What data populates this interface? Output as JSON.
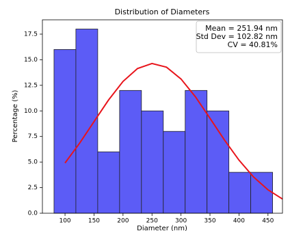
{
  "chart_data": {
    "type": "histogram",
    "title": "Distribution of Diameters",
    "x_label": "Diameter (nm)",
    "y_label": "Percentage (%)",
    "bins": [
      81,
      118.7,
      156.4,
      194.1,
      231.8,
      269.5,
      307.2,
      344.9,
      382.6,
      420.3,
      458
    ],
    "values": [
      16,
      18,
      6,
      12,
      10,
      8,
      12,
      10,
      4,
      4
    ],
    "color": "#5c5cf6",
    "edge_color": "#222222",
    "curve": {
      "color": "#e8141b",
      "x": [
        100,
        125,
        150,
        175,
        200,
        225,
        250,
        275,
        300,
        325,
        350,
        375,
        400,
        425,
        450,
        475
      ],
      "values": [
        4.91,
        6.83,
        8.95,
        11.06,
        12.88,
        14.14,
        14.63,
        14.27,
        13.12,
        11.37,
        9.28,
        7.15,
        5.19,
        3.55,
        2.29,
        1.39
      ]
    },
    "annotations": [
      "Mean = 251.94 nm",
      "Std Dev = 102.82 nm",
      "CV = 40.81%"
    ],
    "xlim": [
      61,
      475
    ],
    "ylim": [
      0,
      18.9
    ],
    "xticks": [
      100,
      150,
      200,
      250,
      300,
      350,
      400,
      450
    ],
    "yticks": [
      {
        "value": 0,
        "label": "0.0"
      },
      2.5,
      {
        "value": 5,
        "label": "5.0"
      },
      7.5,
      {
        "value": 10,
        "label": "10.0"
      },
      12.5,
      {
        "value": 15,
        "label": "15.0"
      },
      17.5
    ]
  }
}
